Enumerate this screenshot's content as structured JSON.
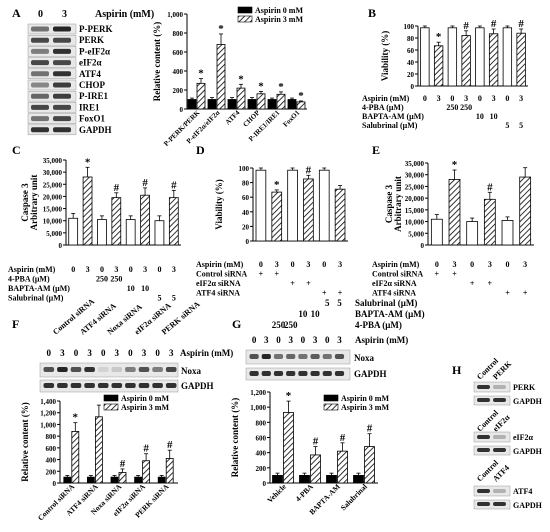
{
  "panel_letters": {
    "A": "A",
    "B": "B",
    "C": "C",
    "D": "D",
    "E": "E",
    "F": "F",
    "G": "G",
    "H": "H"
  },
  "colors": {
    "black": "#000000",
    "blot_bg": "#e8e8e8",
    "band": "#1a1a1a"
  },
  "panelA": {
    "aspirin_header": "Aspirin (mM)",
    "doses": [
      "0",
      "3"
    ],
    "blot_labels": [
      "P-PERK",
      "PERK",
      "P-eIF2α",
      "eIF2α",
      "ATF4",
      "CHOP",
      "P-IRE1",
      "IRE1",
      "FoxO1",
      "GAPDH"
    ]
  },
  "panelF_blot": {
    "groups": [
      "Control siRNA",
      "ATF4 siRNA",
      "Noxa siRNA",
      "eIF2α siRNA",
      "PERK siRNA"
    ],
    "doses": [
      "0",
      "3",
      "0",
      "3",
      "0",
      "3",
      "0",
      "3",
      "0",
      "3"
    ],
    "aspirin_label": "Aspirin (mM)",
    "labels": [
      "Noxa",
      "GAPDH"
    ]
  },
  "panelG_blot": {
    "rows": [
      {
        "label": "Salubrinal (μM)",
        "values": [
          "5",
          "5"
        ]
      },
      {
        "label": "BAPTA-AM (μM)",
        "values": [
          "10",
          "10"
        ]
      },
      {
        "label": "4-PBA (μM)",
        "values": [
          "250",
          "250"
        ]
      }
    ],
    "doses": [
      "0",
      "3",
      "0",
      "3",
      "0",
      "3",
      "0",
      "3"
    ],
    "aspirin_label": "Aspirin (mM)",
    "labels": [
      "Noxa",
      "GAPDH"
    ]
  },
  "panelH": {
    "blots": [
      {
        "lanes": [
          "Control",
          "PERK"
        ],
        "labels": [
          "PERK",
          "GAPDH"
        ]
      },
      {
        "lanes": [
          "Control",
          "eIF2α"
        ],
        "labels": [
          "eIF2α",
          "GAPDH"
        ]
      },
      {
        "lanes": [
          "Control",
          "ATF4"
        ],
        "labels": [
          "ATF4",
          "GAPDH"
        ]
      }
    ]
  },
  "chart_data": [
    {
      "panel": "A",
      "type": "bar",
      "ylabel": "Relative content (%)",
      "ylim": [
        0,
        1000
      ],
      "yticks": [
        "0",
        "200",
        "400",
        "600",
        "800",
        "1,000"
      ],
      "categories": [
        "P-PERK/PERK",
        "P-eIF2α/eIF2α",
        "ATF4",
        "CHOP",
        "P-IRE1/IRE1",
        "FoxO1"
      ],
      "series": [
        {
          "name": "Aspirin 0 mM",
          "pattern": "solid",
          "values": [
            100,
            100,
            100,
            100,
            100,
            100
          ],
          "err": [
            15,
            20,
            20,
            20,
            15,
            15
          ]
        },
        {
          "name": "Aspirin 3 mM",
          "pattern": "hatch",
          "values": [
            270,
            680,
            220,
            160,
            155,
            75
          ],
          "err": [
            50,
            110,
            40,
            25,
            25,
            10
          ]
        }
      ],
      "sig": [
        "*",
        "*",
        "*",
        "*",
        "*",
        "*"
      ],
      "legend_position": "top-right"
    },
    {
      "panel": "B",
      "type": "bar",
      "ylabel": "Viability (%)",
      "ylim": [
        0,
        100
      ],
      "yticks": [
        "0",
        "20",
        "40",
        "60",
        "80",
        "100"
      ],
      "values": [
        97,
        67,
        97,
        84,
        97,
        87,
        97,
        88
      ],
      "err": [
        3,
        6,
        3,
        8,
        3,
        8,
        3,
        7
      ],
      "hatched": [
        false,
        true,
        false,
        true,
        false,
        true,
        false,
        true
      ],
      "sig": [
        "",
        "*",
        "",
        "#",
        "",
        "#",
        "",
        "#"
      ],
      "treatments": [
        {
          "label": "Aspirin (mM)",
          "values": [
            "0",
            "3",
            "0",
            "3",
            "0",
            "3",
            "0",
            "3"
          ]
        },
        {
          "label": "4-PBA (μM)",
          "values": [
            "",
            "",
            "250",
            "250",
            "",
            "",
            "",
            ""
          ]
        },
        {
          "label": "BAPTA-AM (μM)",
          "values": [
            "",
            "",
            "",
            "",
            "10",
            "10",
            "",
            ""
          ]
        },
        {
          "label": "Salubrinal (μM)",
          "values": [
            "",
            "",
            "",
            "",
            "",
            "",
            "5",
            "5"
          ]
        }
      ]
    },
    {
      "panel": "C",
      "type": "bar",
      "ylabel": "Caspase 3\nArbitrary unit",
      "ylim": [
        0,
        35000
      ],
      "yticks": [
        "0",
        "5,000",
        "10,000",
        "15,000",
        "20,000",
        "25,000",
        "30,000",
        "35,000"
      ],
      "values": [
        11000,
        28000,
        10500,
        19500,
        10500,
        20500,
        10000,
        19500
      ],
      "err": [
        2000,
        4000,
        1500,
        2000,
        1500,
        3000,
        2000,
        3000
      ],
      "hatched": [
        false,
        true,
        false,
        true,
        false,
        true,
        false,
        true
      ],
      "sig": [
        "",
        "*",
        "",
        "#",
        "",
        "#",
        "",
        "#"
      ],
      "treatments": [
        {
          "label": "Aspirin (mM)",
          "values": [
            "0",
            "3",
            "0",
            "3",
            "0",
            "3",
            "0",
            "3"
          ]
        },
        {
          "label": "4-PBA (μM)",
          "values": [
            "",
            "",
            "250",
            "250",
            "",
            "",
            "",
            ""
          ]
        },
        {
          "label": "BAPTA-AM (μM)",
          "values": [
            "",
            "",
            "",
            "",
            "10",
            "10",
            "",
            ""
          ]
        },
        {
          "label": "Salubrinal (μM)",
          "values": [
            "",
            "",
            "",
            "",
            "",
            "",
            "5",
            "5"
          ]
        }
      ]
    },
    {
      "panel": "D",
      "type": "bar",
      "ylabel": "Viability (%)",
      "ylim": [
        0,
        100
      ],
      "yticks": [
        "0",
        "20",
        "40",
        "60",
        "80",
        "100"
      ],
      "values": [
        97,
        67,
        97,
        85,
        97,
        71
      ],
      "err": [
        3,
        3,
        3,
        5,
        3,
        5
      ],
      "hatched": [
        false,
        true,
        false,
        true,
        false,
        true
      ],
      "sig": [
        "",
        "*",
        "",
        "#",
        "",
        ""
      ],
      "treatments": [
        {
          "label": "Aspirin (mM)",
          "values": [
            "0",
            "3",
            "0",
            "3",
            "0",
            "3"
          ]
        },
        {
          "label": "Control siRNA",
          "values": [
            "+",
            "+",
            "",
            "",
            "",
            ""
          ]
        },
        {
          "label": "eIF2α siRNA",
          "values": [
            "",
            "",
            "+",
            "+",
            "",
            ""
          ]
        },
        {
          "label": "ATF4 siRNA",
          "values": [
            "",
            "",
            "",
            "",
            "+",
            "+"
          ]
        }
      ]
    },
    {
      "panel": "E",
      "type": "bar",
      "ylabel": "Caspase 3\nArbitrary unit",
      "ylim": [
        0,
        35000
      ],
      "yticks": [
        "0",
        "5,000",
        "10,000",
        "15,000",
        "20,000",
        "25,000",
        "30,000",
        "35,000"
      ],
      "values": [
        11000,
        28000,
        10000,
        19500,
        10500,
        29000
      ],
      "err": [
        2000,
        4000,
        1500,
        3000,
        1500,
        4000
      ],
      "hatched": [
        false,
        true,
        false,
        true,
        false,
        true
      ],
      "sig": [
        "",
        "*",
        "",
        "#",
        "",
        ""
      ],
      "treatments": [
        {
          "label": "Aspirin (mM)",
          "values": [
            "0",
            "3",
            "0",
            "3",
            "0",
            "3"
          ]
        },
        {
          "label": "Control siRNA",
          "values": [
            "+",
            "+",
            "",
            "",
            "",
            ""
          ]
        },
        {
          "label": "eIF2α siRNA",
          "values": [
            "",
            "",
            "+",
            "+",
            "",
            ""
          ]
        },
        {
          "label": "ATF4 siRNA",
          "values": [
            "",
            "",
            "",
            "",
            "+",
            "+"
          ]
        }
      ]
    },
    {
      "panel": "F",
      "type": "bar",
      "ylabel": "Relative content (%)",
      "ylim": [
        0,
        1400
      ],
      "yticks": [
        "0",
        "200",
        "400",
        "600",
        "800",
        "1,000",
        "1,200",
        "1,400"
      ],
      "categories": [
        "Control siRNA",
        "ATF4 siRNA",
        "Noxa siRNA",
        "eIF2α siRNA",
        "PERK siRNA"
      ],
      "series": [
        {
          "name": "Aspirin 0 mM",
          "pattern": "solid",
          "values": [
            100,
            100,
            100,
            100,
            100
          ],
          "err": [
            30,
            30,
            30,
            30,
            30
          ]
        },
        {
          "name": "Aspirin 3 mM",
          "pattern": "hatch",
          "values": [
            880,
            1130,
            180,
            380,
            420
          ],
          "err": [
            150,
            200,
            60,
            120,
            140
          ]
        }
      ],
      "sig": [
        "*",
        "",
        "#",
        "#",
        "#"
      ],
      "legend_position": "top-right"
    },
    {
      "panel": "G",
      "type": "bar",
      "ylabel": "Relative content (%)",
      "ylim": [
        0,
        1200
      ],
      "yticks": [
        "0",
        "200",
        "400",
        "600",
        "800",
        "1,000",
        "1,200"
      ],
      "categories": [
        "Vehicle",
        "4-PBA",
        "BAPTA-AM",
        "Salubrinal"
      ],
      "series": [
        {
          "name": "Aspirin 0 mM",
          "pattern": "solid",
          "values": [
            100,
            100,
            100,
            100
          ],
          "err": [
            30,
            30,
            30,
            30
          ]
        },
        {
          "name": "Aspirin 3 mM",
          "pattern": "hatch",
          "values": [
            930,
            370,
            420,
            480
          ],
          "err": [
            150,
            110,
            110,
            170
          ]
        }
      ],
      "sig": [
        "*",
        "#",
        "#",
        "#"
      ],
      "legend_position": "top-right"
    }
  ]
}
